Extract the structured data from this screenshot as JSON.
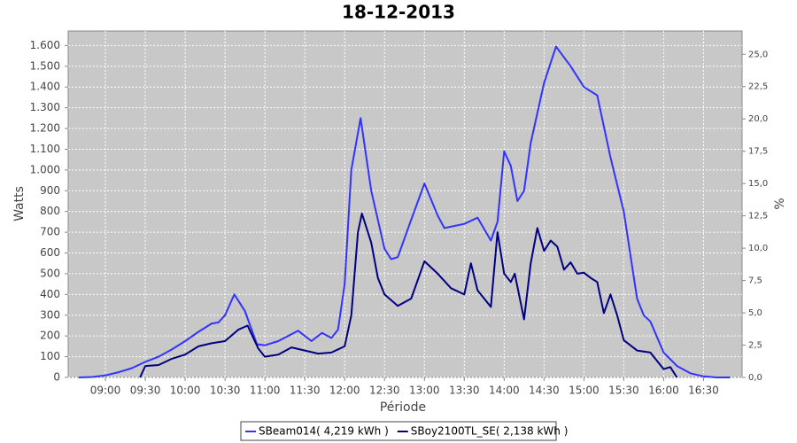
{
  "chart_data": {
    "type": "line",
    "title": "18-12-2013",
    "xlabel": "Période",
    "ylabel": "Watts",
    "y2label": "%",
    "xlim": [
      "08:32",
      "16:59"
    ],
    "xticks": [
      "09:00",
      "09:30",
      "10:00",
      "10:30",
      "11:00",
      "11:30",
      "12:00",
      "12:30",
      "13:00",
      "13:30",
      "14:00",
      "14:30",
      "15:00",
      "15:30",
      "16:00",
      "16:30"
    ],
    "ylim": [
      0,
      1670
    ],
    "yticks": [
      0,
      100,
      200,
      300,
      400,
      500,
      600,
      700,
      800,
      900,
      {
        "value": 1000,
        "label": "1.000"
      },
      {
        "value": 1100,
        "label": "1.100"
      },
      {
        "value": 1200,
        "label": "1.200"
      },
      {
        "value": 1300,
        "label": "1.300"
      },
      {
        "value": 1400,
        "label": "1.400"
      },
      {
        "value": 1500,
        "label": "1.500"
      },
      {
        "value": 1600,
        "label": "1.600"
      }
    ],
    "y2lim": [
      0,
      26.8
    ],
    "y2ticks": [
      {
        "value": 0,
        "label": "0,0"
      },
      {
        "value": 2.5,
        "label": "2,5"
      },
      {
        "value": 5,
        "label": "5,0"
      },
      {
        "value": 7.5,
        "label": "7,5"
      },
      {
        "value": 10,
        "label": "10,0"
      },
      {
        "value": 12.5,
        "label": "12,5"
      },
      {
        "value": 15,
        "label": "15,0"
      },
      {
        "value": 17.5,
        "label": "17,5"
      },
      {
        "value": 20,
        "label": "20,0"
      },
      {
        "value": 22.5,
        "label": "22,5"
      },
      {
        "value": 25,
        "label": "25,0"
      }
    ],
    "grid": true,
    "legend": "bottom",
    "series": [
      {
        "name": "SBeam014( 4,219 kWh )",
        "color": "#3333ff",
        "x": [
          "08:40",
          "08:50",
          "09:00",
          "09:10",
          "09:20",
          "09:30",
          "09:40",
          "09:50",
          "10:00",
          "10:10",
          "10:20",
          "10:25",
          "10:30",
          "10:37",
          "10:45",
          "10:54",
          "11:00",
          "11:10",
          "11:25",
          "11:35",
          "11:43",
          "11:50",
          "11:55",
          "12:00",
          "12:05",
          "12:12",
          "12:20",
          "12:30",
          "12:35",
          "12:40",
          "12:50",
          "13:00",
          "13:10",
          "13:15",
          "13:30",
          "13:40",
          "13:50",
          "13:55",
          "14:00",
          "14:05",
          "14:10",
          "14:15",
          "14:20",
          "14:30",
          "14:39",
          "14:50",
          "15:00",
          "15:10",
          "15:20",
          "15:30",
          "15:40",
          "15:45",
          "15:50",
          "16:00",
          "16:10",
          "16:20",
          "16:30",
          "16:40",
          "16:50"
        ],
        "values": [
          0,
          2,
          10,
          25,
          45,
          75,
          100,
          135,
          175,
          220,
          260,
          265,
          300,
          400,
          320,
          160,
          155,
          175,
          225,
          175,
          215,
          190,
          230,
          450,
          1000,
          1250,
          900,
          620,
          570,
          580,
          760,
          935,
          780,
          720,
          740,
          770,
          660,
          750,
          1090,
          1020,
          850,
          900,
          1130,
          1420,
          1595,
          1500,
          1400,
          1360,
          1060,
          800,
          380,
          300,
          270,
          120,
          55,
          20,
          5,
          0,
          0
        ]
      },
      {
        "name": "SBoy2100TL_SE( 2,138 kWh )",
        "color": "#000080",
        "x": [
          "09:26",
          "09:30",
          "09:40",
          "09:50",
          "10:00",
          "10:10",
          "10:20",
          "10:30",
          "10:40",
          "10:47",
          "10:55",
          "11:00",
          "11:10",
          "11:20",
          "11:30",
          "11:40",
          "11:50",
          "12:00",
          "12:05",
          "12:10",
          "12:13",
          "12:20",
          "12:25",
          "12:30",
          "12:40",
          "12:50",
          "13:00",
          "13:10",
          "13:20",
          "13:30",
          "13:35",
          "13:40",
          "13:50",
          "13:55",
          "14:00",
          "14:05",
          "14:08",
          "14:15",
          "14:20",
          "14:25",
          "14:30",
          "14:35",
          "14:40",
          "14:45",
          "14:50",
          "14:55",
          "15:00",
          "15:05",
          "15:10",
          "15:15",
          "15:20",
          "15:25",
          "15:30",
          "15:40",
          "15:50",
          "15:55",
          "16:00",
          "16:05",
          "16:10"
        ],
        "values": [
          0,
          55,
          60,
          90,
          110,
          150,
          165,
          175,
          230,
          250,
          140,
          100,
          110,
          145,
          130,
          115,
          120,
          150,
          300,
          700,
          790,
          650,
          480,
          400,
          345,
          380,
          560,
          500,
          430,
          400,
          550,
          420,
          340,
          700,
          500,
          460,
          500,
          280,
          550,
          720,
          610,
          660,
          630,
          520,
          555,
          500,
          505,
          480,
          460,
          310,
          400,
          300,
          180,
          130,
          120,
          80,
          40,
          50,
          0
        ]
      }
    ]
  }
}
